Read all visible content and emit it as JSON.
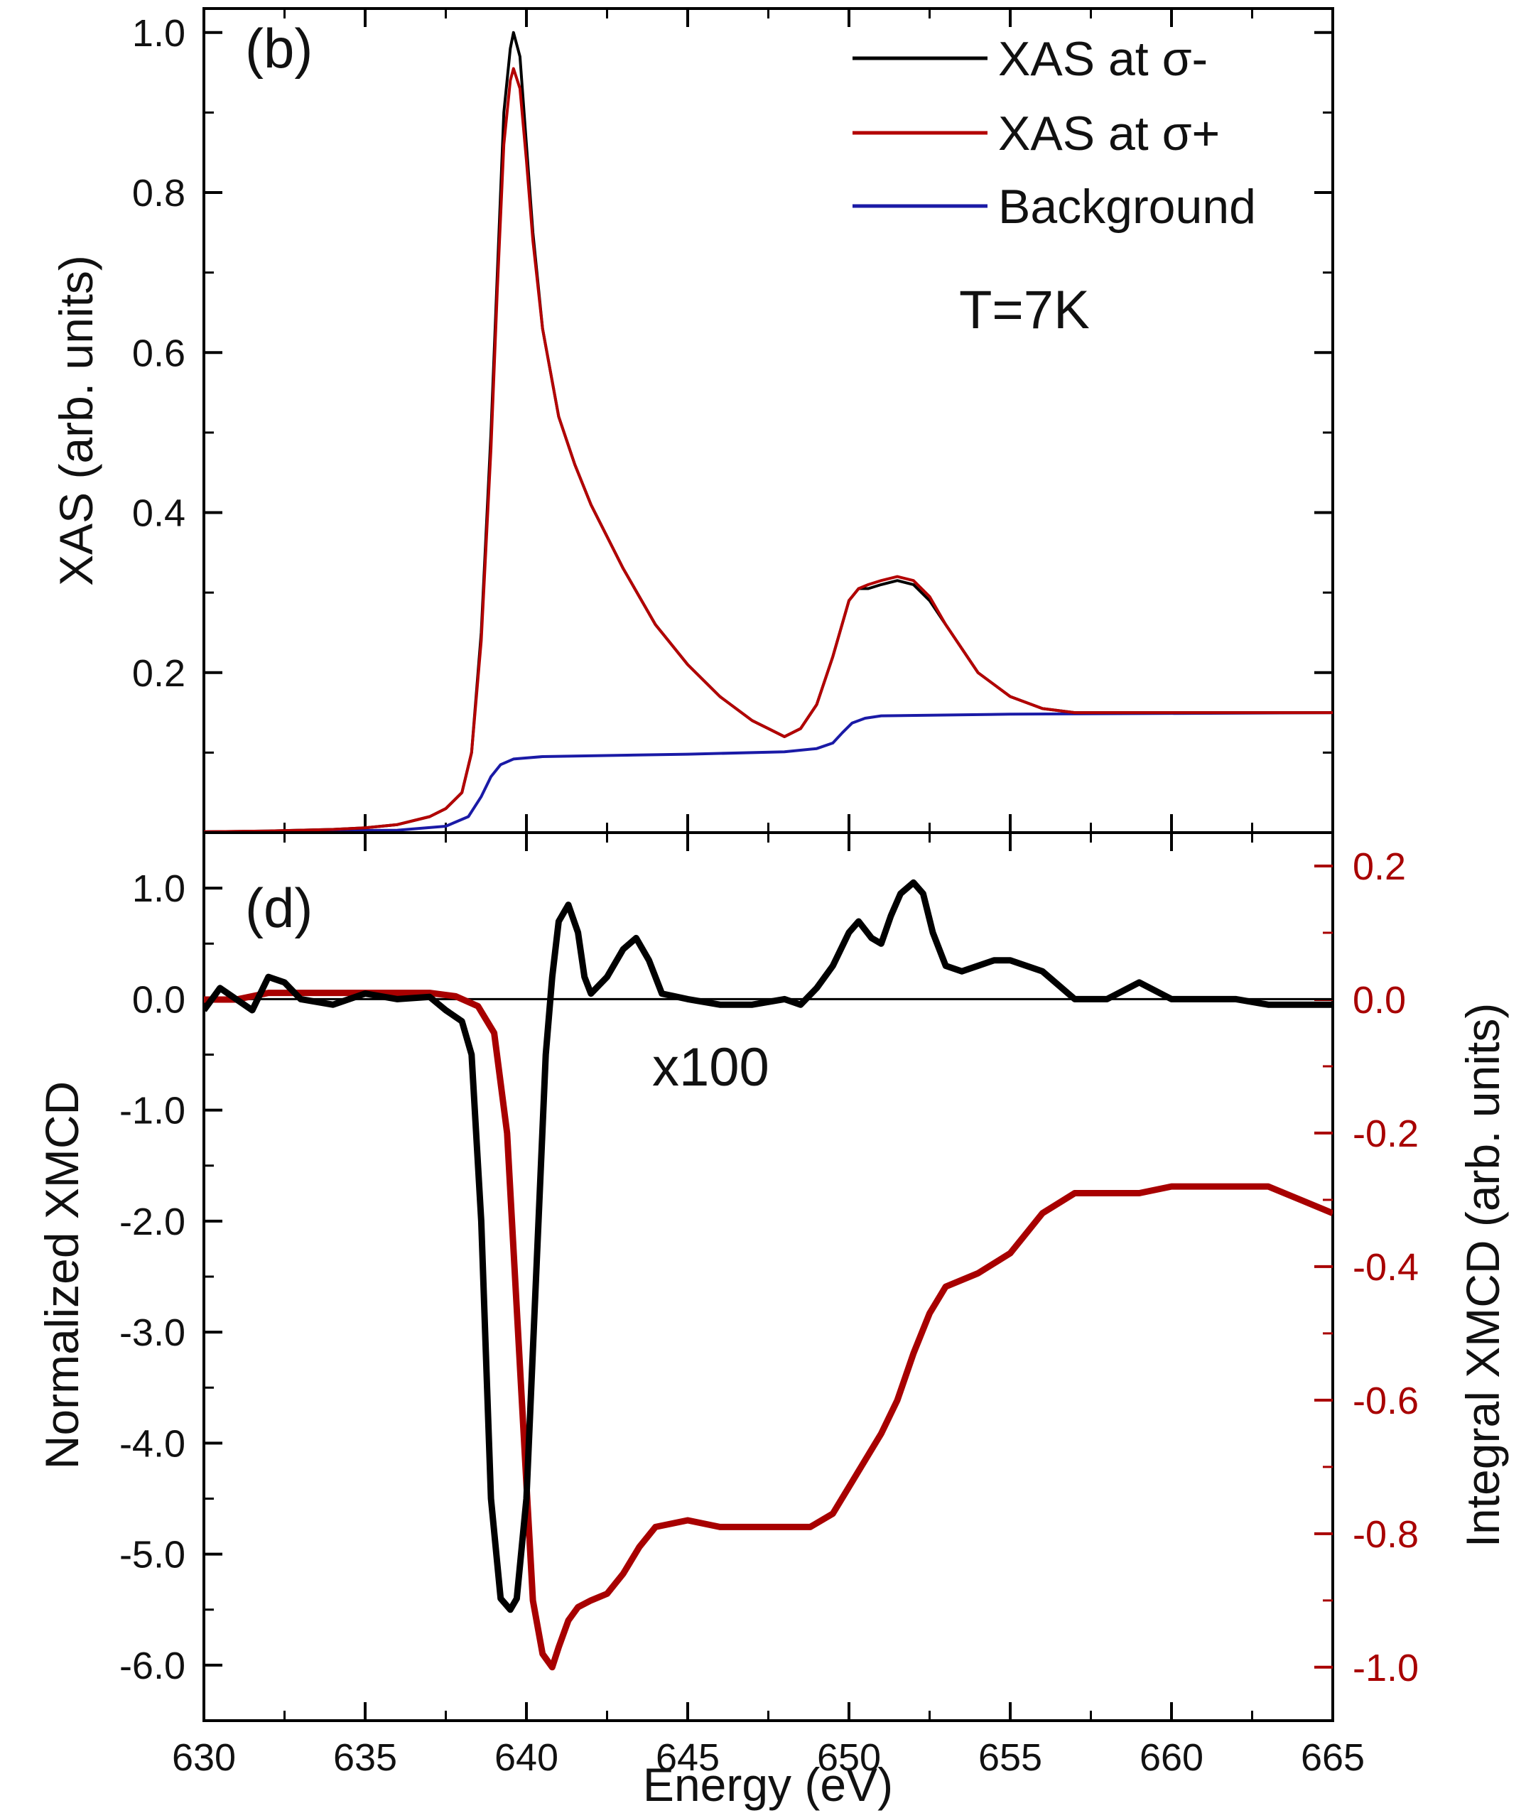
{
  "chart_data": [
    {
      "panel_label": "(b)",
      "type": "line",
      "xlabel": "",
      "ylabel": "XAS (arb. units)",
      "xlim": [
        630,
        665
      ],
      "ylim": [
        0.0,
        1.03
      ],
      "yticks": [
        0.2,
        0.4,
        0.6,
        0.8,
        1.0
      ],
      "ytick_labels": [
        "0.2",
        "0.4",
        "0.6",
        "0.8",
        "1.0"
      ],
      "annotation": "T=7K",
      "legend_position": "top-right",
      "series": [
        {
          "name": "XAS at σ-",
          "color": "#000000",
          "x": [
            630,
            632,
            634,
            635,
            636,
            637,
            637.5,
            638,
            638.3,
            638.6,
            638.9,
            639.1,
            639.3,
            639.5,
            639.6,
            639.8,
            640,
            640.2,
            640.5,
            641,
            641.5,
            642,
            643,
            644,
            645,
            646,
            647,
            647.5,
            648,
            648.5,
            649,
            649.5,
            650,
            650.3,
            650.6,
            651,
            651.5,
            652,
            652.5,
            653,
            653.5,
            654,
            655,
            656,
            657,
            660,
            665
          ],
          "values": [
            0.001,
            0.002,
            0.004,
            0.006,
            0.01,
            0.02,
            0.03,
            0.05,
            0.1,
            0.25,
            0.5,
            0.7,
            0.9,
            0.98,
            1.0,
            0.97,
            0.86,
            0.75,
            0.63,
            0.52,
            0.46,
            0.41,
            0.33,
            0.26,
            0.21,
            0.17,
            0.14,
            0.13,
            0.12,
            0.13,
            0.16,
            0.22,
            0.29,
            0.305,
            0.305,
            0.31,
            0.315,
            0.31,
            0.29,
            0.26,
            0.23,
            0.2,
            0.17,
            0.155,
            0.15,
            0.15,
            0.15
          ]
        },
        {
          "name": "XAS at σ+",
          "color": "#b30000",
          "x": [
            630,
            632,
            634,
            635,
            636,
            637,
            637.5,
            638,
            638.3,
            638.6,
            638.9,
            639.1,
            639.3,
            639.5,
            639.6,
            639.8,
            640,
            640.2,
            640.5,
            641,
            641.5,
            642,
            643,
            644,
            645,
            646,
            647,
            647.5,
            648,
            648.5,
            649,
            649.5,
            650,
            650.3,
            650.6,
            651,
            651.5,
            652,
            652.5,
            653,
            653.5,
            654,
            655,
            656,
            657,
            660,
            665
          ],
          "values": [
            0.001,
            0.002,
            0.004,
            0.006,
            0.01,
            0.02,
            0.03,
            0.05,
            0.1,
            0.24,
            0.48,
            0.68,
            0.86,
            0.94,
            0.955,
            0.93,
            0.84,
            0.74,
            0.63,
            0.52,
            0.46,
            0.41,
            0.33,
            0.26,
            0.21,
            0.17,
            0.14,
            0.13,
            0.12,
            0.13,
            0.16,
            0.22,
            0.29,
            0.305,
            0.31,
            0.315,
            0.32,
            0.315,
            0.295,
            0.26,
            0.23,
            0.2,
            0.17,
            0.155,
            0.15,
            0.15,
            0.15
          ]
        },
        {
          "name": "Background",
          "color": "#1a1aa6",
          "x": [
            630,
            636,
            637.5,
            638.2,
            638.6,
            638.9,
            639.2,
            639.6,
            640.5,
            645,
            648,
            649,
            649.5,
            649.8,
            650.1,
            650.5,
            651,
            655,
            665
          ],
          "values": [
            0.001,
            0.003,
            0.008,
            0.02,
            0.045,
            0.07,
            0.085,
            0.092,
            0.095,
            0.098,
            0.101,
            0.105,
            0.112,
            0.125,
            0.137,
            0.143,
            0.146,
            0.148,
            0.15
          ]
        }
      ]
    },
    {
      "panel_label": "(d)",
      "type": "line",
      "xlabel": "Energy (eV)",
      "ylabel": "Normalized XMCD",
      "ylabel_right": "Integral XMCD (arb. units)",
      "xlim": [
        630,
        665
      ],
      "xticks": [
        630,
        635,
        640,
        645,
        650,
        655,
        660,
        665
      ],
      "xtick_labels": [
        "630",
        "635",
        "640",
        "645",
        "650",
        "655",
        "660",
        "665"
      ],
      "ylim": [
        -6.5,
        1.5
      ],
      "yticks": [
        1.0,
        0.0,
        -1.0,
        -2.0,
        -3.0,
        -4.0,
        -5.0,
        -6.0
      ],
      "ytick_labels": [
        "1.0",
        "0.0",
        "-1.0",
        "-2.0",
        "-3.0",
        "-4.0",
        "-5.0",
        "-6.0"
      ],
      "ylim_right": [
        -1.08,
        0.25
      ],
      "yticks_right": [
        0.2,
        0.0,
        -0.2,
        -0.4,
        -0.6,
        -0.8,
        -1.0
      ],
      "ytick_labels_right": [
        "0.2",
        "0.0",
        "-0.2",
        "-0.4",
        "-0.6",
        "-0.8",
        "-1.0"
      ],
      "reference_line_y": 0.0,
      "annotation": "x100",
      "series": [
        {
          "name": "Normalized XMCD",
          "color": "#000000",
          "axis": "left",
          "x": [
            630,
            630.5,
            631,
            631.5,
            632,
            632.5,
            633,
            634,
            635,
            636,
            637,
            637.5,
            638,
            638.3,
            638.6,
            638.9,
            639.2,
            639.5,
            639.7,
            640,
            640.3,
            640.6,
            640.8,
            641,
            641.3,
            641.6,
            641.8,
            642,
            642.5,
            643,
            643.4,
            643.8,
            644.2,
            645,
            646,
            647,
            648,
            648.5,
            649,
            649.5,
            650,
            650.3,
            650.7,
            651,
            651.3,
            651.6,
            652,
            652.3,
            652.6,
            653,
            653.5,
            654,
            654.5,
            655,
            655.5,
            656,
            657,
            658,
            659,
            660,
            661,
            662,
            663,
            664,
            665
          ],
          "values": [
            -0.1,
            0.1,
            0.0,
            -0.1,
            0.2,
            0.15,
            0.0,
            -0.05,
            0.05,
            0.0,
            0.02,
            -0.1,
            -0.2,
            -0.5,
            -2.0,
            -4.5,
            -5.4,
            -5.5,
            -5.4,
            -4.5,
            -2.5,
            -0.5,
            0.2,
            0.7,
            0.85,
            0.6,
            0.2,
            0.05,
            0.2,
            0.45,
            0.55,
            0.35,
            0.05,
            0.0,
            -0.05,
            -0.05,
            0.0,
            -0.05,
            0.1,
            0.3,
            0.6,
            0.7,
            0.55,
            0.5,
            0.75,
            0.95,
            1.05,
            0.95,
            0.6,
            0.3,
            0.25,
            0.3,
            0.35,
            0.35,
            0.3,
            0.25,
            0.0,
            0.0,
            0.15,
            0.0,
            0.0,
            0.0,
            -0.05,
            -0.05,
            -0.05
          ]
        },
        {
          "name": "Integral XMCD",
          "color": "#a80000",
          "axis": "right",
          "x": [
            630,
            631,
            632,
            633,
            634,
            635,
            636,
            637,
            637.8,
            638.5,
            639,
            639.4,
            639.8,
            640.2,
            640.5,
            640.8,
            641,
            641.3,
            641.6,
            642,
            642.5,
            643,
            643.5,
            644,
            645,
            646,
            647,
            648,
            648.8,
            649.5,
            650,
            651,
            651.5,
            652,
            652.5,
            653,
            654,
            655,
            655.5,
            656,
            657,
            658,
            659,
            660,
            661,
            662,
            663,
            664,
            665
          ],
          "values": [
            0.0,
            0.0,
            0.01,
            0.01,
            0.01,
            0.01,
            0.01,
            0.01,
            0.005,
            -0.01,
            -0.05,
            -0.2,
            -0.55,
            -0.9,
            -0.98,
            -1.0,
            -0.97,
            -0.93,
            -0.91,
            -0.9,
            -0.89,
            -0.86,
            -0.82,
            -0.79,
            -0.78,
            -0.79,
            -0.79,
            -0.79,
            -0.79,
            -0.77,
            -0.73,
            -0.65,
            -0.6,
            -0.53,
            -0.47,
            -0.43,
            -0.41,
            -0.38,
            -0.35,
            -0.32,
            -0.29,
            -0.29,
            -0.29,
            -0.28,
            -0.28,
            -0.28,
            -0.28,
            -0.3,
            -0.32
          ]
        }
      ]
    }
  ]
}
